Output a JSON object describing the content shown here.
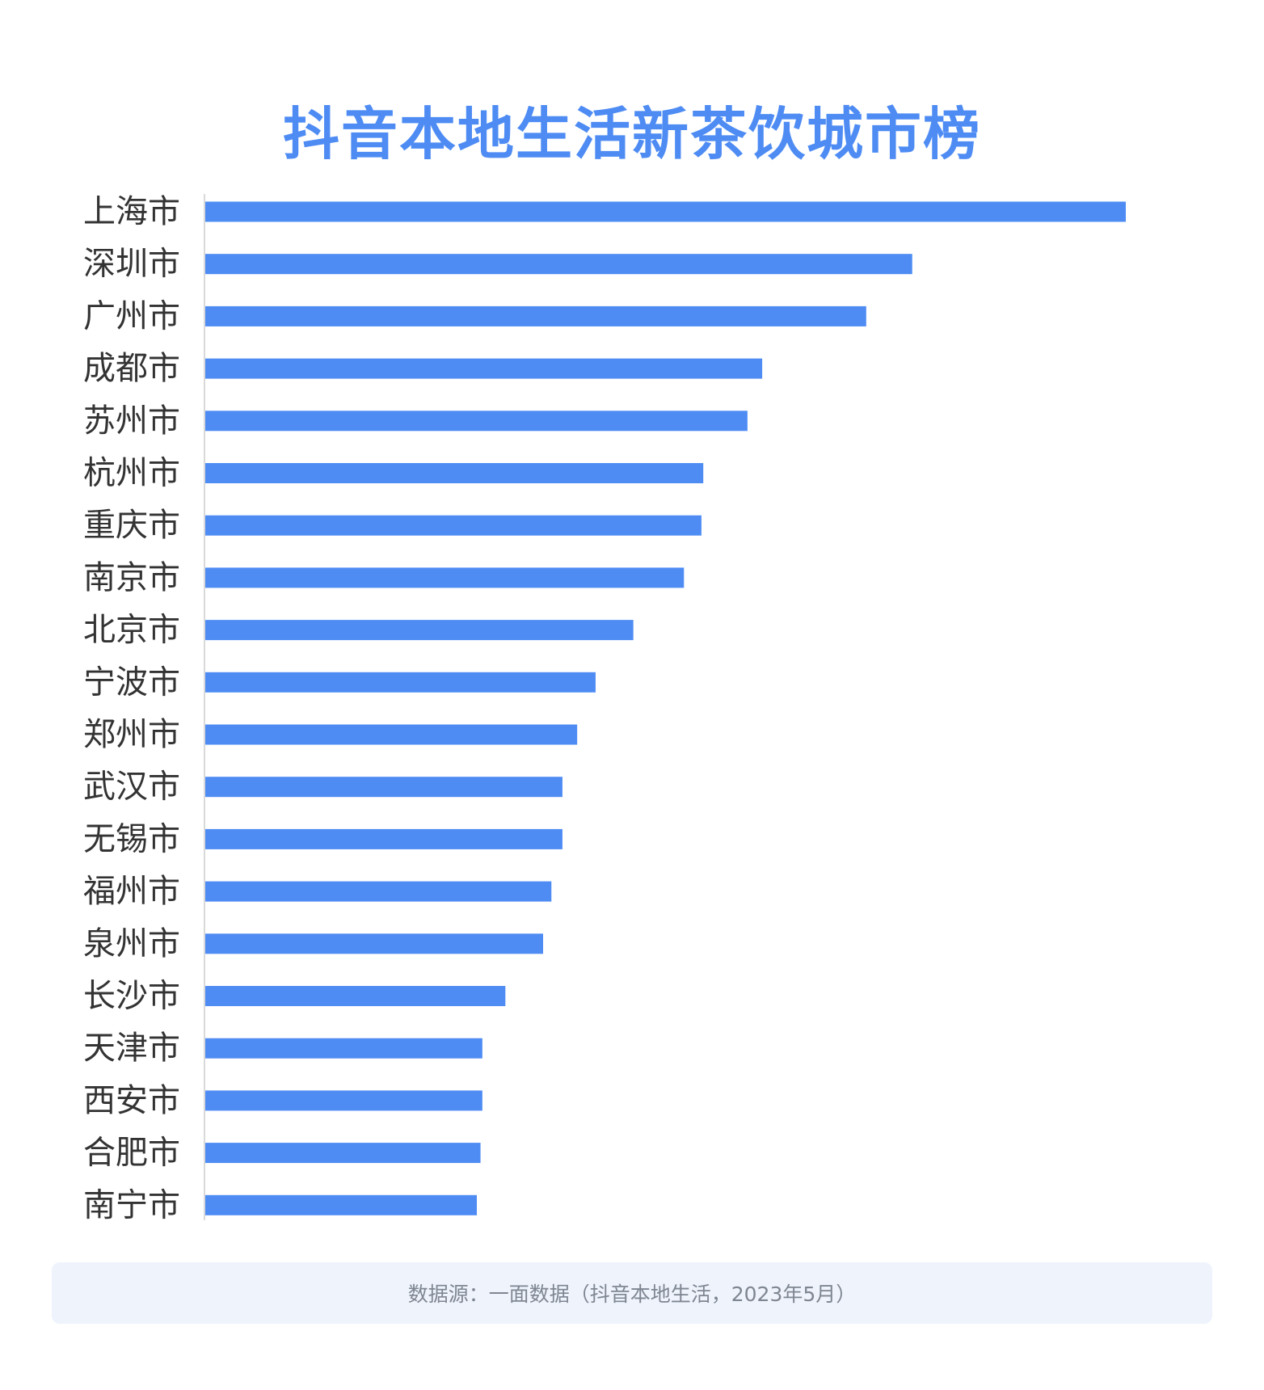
{
  "chart_data": {
    "type": "bar",
    "orientation": "horizontal",
    "title": "抖音本地生活新茶饮城市榜",
    "categories": [
      "上海市",
      "深圳市",
      "广州市",
      "成都市",
      "苏州市",
      "杭州市",
      "重庆市",
      "南京市",
      "北京市",
      "宁波市",
      "郑州市",
      "武汉市",
      "无锡市",
      "福州市",
      "泉州市",
      "长沙市",
      "天津市",
      "西安市",
      "合肥市",
      "南宁市"
    ],
    "values": [
      100,
      76.8,
      71.8,
      60.5,
      58.9,
      54.1,
      53.9,
      52,
      46.5,
      42.4,
      40.4,
      38.8,
      38.8,
      37.6,
      36.7,
      32.6,
      30.1,
      30.1,
      29.9,
      29.5
    ],
    "xlim": [
      0,
      100
    ],
    "axis_values_shown": false,
    "grid": false,
    "bar_color": "#4e8cf4",
    "title_color": "#4e8cf4"
  },
  "source": {
    "text": "数据源：一面数据（抖音本地生活，2023年5月）"
  }
}
